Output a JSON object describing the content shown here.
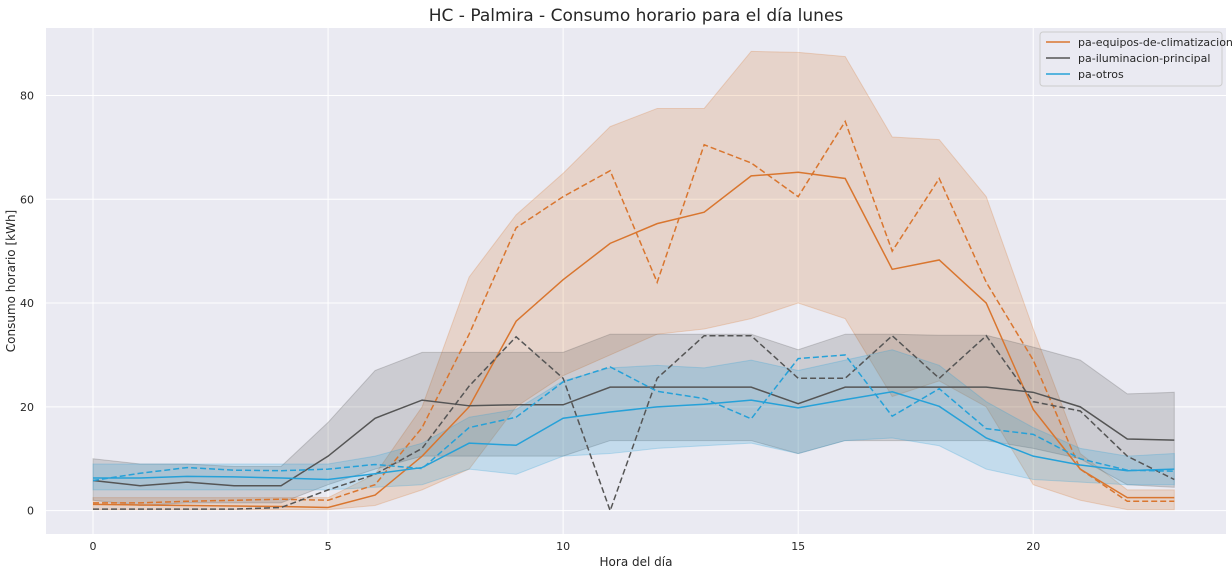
{
  "chart_data": {
    "type": "line",
    "title": "HC - Palmira - Consumo horario para el día lunes",
    "xlabel": "Hora del día",
    "ylabel": "Consumo horario [kWh]",
    "xlim": [
      -1,
      24.1
    ],
    "ylim": [
      -4.5,
      93
    ],
    "xticks": [
      0,
      5,
      10,
      15,
      20
    ],
    "yticks": [
      0,
      20,
      40,
      60,
      80
    ],
    "grid": true,
    "legend_position": "top-right",
    "x": [
      0,
      1,
      2,
      3,
      4,
      5,
      6,
      7,
      8,
      9,
      10,
      11,
      12,
      13,
      14,
      15,
      16,
      17,
      18,
      19,
      20,
      21,
      22,
      23
    ],
    "series": [
      {
        "name": "pa-equipos-de-climatizacion",
        "color": "#d9762f",
        "mean": [
          1.2,
          1.1,
          1.0,
          0.9,
          0.8,
          0.6,
          3.0,
          10.5,
          20.0,
          36.5,
          44.5,
          51.5,
          55.3,
          57.5,
          64.5,
          65.2,
          64.0,
          46.5,
          48.3,
          40.0,
          19.5,
          8.0,
          2.5,
          2.5
        ],
        "dashed": [
          1.5,
          1.5,
          1.8,
          2.0,
          2.2,
          2.0,
          5.0,
          16.0,
          34.0,
          54.5,
          60.5,
          65.5,
          44.0,
          70.5,
          67.0,
          60.5,
          75.0,
          50.0,
          64.0,
          44.0,
          29.0,
          8.0,
          1.8,
          1.8
        ],
        "upper": [
          2.5,
          2.5,
          2.5,
          2.5,
          2.5,
          2.5,
          7.0,
          20.0,
          45.0,
          57.0,
          65.0,
          74.0,
          77.5,
          77.5,
          88.5,
          88.3,
          87.5,
          72.0,
          71.5,
          60.5,
          35.0,
          11.0,
          4.0,
          4.0
        ],
        "lower": [
          0.2,
          0.2,
          0.2,
          0.2,
          0.2,
          0.2,
          1.0,
          4.0,
          8.0,
          20.0,
          26.0,
          30.0,
          34.0,
          35.0,
          37.0,
          40.0,
          37.0,
          22.0,
          25.0,
          20.0,
          5.0,
          2.0,
          0.2,
          0.2
        ]
      },
      {
        "name": "pa-iluminacion-principal",
        "color": "#555555",
        "mean": [
          5.8,
          4.8,
          5.5,
          4.8,
          4.8,
          10.5,
          17.8,
          21.3,
          20.2,
          20.4,
          20.4,
          23.8,
          23.8,
          23.8,
          23.8,
          20.6,
          23.8,
          23.8,
          23.8,
          23.8,
          22.8,
          20.0,
          13.8,
          13.6
        ],
        "dashed": [
          0.3,
          0.3,
          0.3,
          0.3,
          0.6,
          4.0,
          7.0,
          12.0,
          24.0,
          33.5,
          25.5,
          0.0,
          25.5,
          33.7,
          33.7,
          25.5,
          25.5,
          33.7,
          25.5,
          33.7,
          21.0,
          19.2,
          10.5,
          6.0
        ],
        "upper": [
          10.0,
          9.0,
          9.0,
          8.5,
          8.5,
          17.0,
          27.0,
          30.5,
          30.5,
          30.5,
          30.5,
          34.0,
          34.0,
          34.0,
          34.0,
          31.0,
          34.0,
          34.0,
          33.8,
          33.8,
          31.5,
          29.0,
          22.5,
          22.8
        ],
        "lower": [
          2.0,
          1.0,
          1.5,
          1.5,
          1.5,
          5.0,
          8.0,
          10.5,
          10.5,
          10.5,
          10.5,
          13.5,
          13.5,
          13.5,
          13.5,
          11.0,
          13.5,
          13.5,
          13.5,
          13.5,
          12.0,
          10.0,
          5.0,
          4.5
        ]
      },
      {
        "name": "pa-otros",
        "color": "#26a1d8",
        "mean": [
          6.3,
          6.3,
          6.6,
          6.5,
          6.3,
          6.0,
          7.1,
          8.3,
          13.0,
          12.6,
          17.8,
          19.0,
          20.0,
          20.5,
          21.3,
          19.8,
          21.4,
          22.9,
          20.1,
          14.0,
          10.5,
          8.8,
          7.7,
          8.0
        ],
        "dashed": [
          5.8,
          7.2,
          8.3,
          7.8,
          7.7,
          8.0,
          8.9,
          8.1,
          16.0,
          18.0,
          24.8,
          27.7,
          23.0,
          21.6,
          17.7,
          29.3,
          30.0,
          18.2,
          23.5,
          15.8,
          14.7,
          10.0,
          7.8,
          7.6
        ],
        "upper": [
          9.0,
          9.0,
          9.0,
          9.0,
          9.0,
          9.0,
          10.5,
          13.0,
          18.0,
          19.5,
          25.0,
          27.5,
          28.0,
          27.5,
          29.0,
          27.0,
          29.0,
          31.0,
          28.0,
          21.0,
          16.0,
          12.0,
          10.5,
          11.0
        ],
        "lower": [
          4.0,
          4.0,
          4.0,
          4.0,
          4.0,
          4.0,
          4.5,
          5.0,
          8.0,
          7.0,
          10.5,
          11.0,
          12.0,
          12.5,
          13.0,
          11.0,
          13.5,
          14.0,
          12.5,
          8.0,
          6.0,
          5.5,
          5.0,
          5.0
        ]
      }
    ]
  }
}
